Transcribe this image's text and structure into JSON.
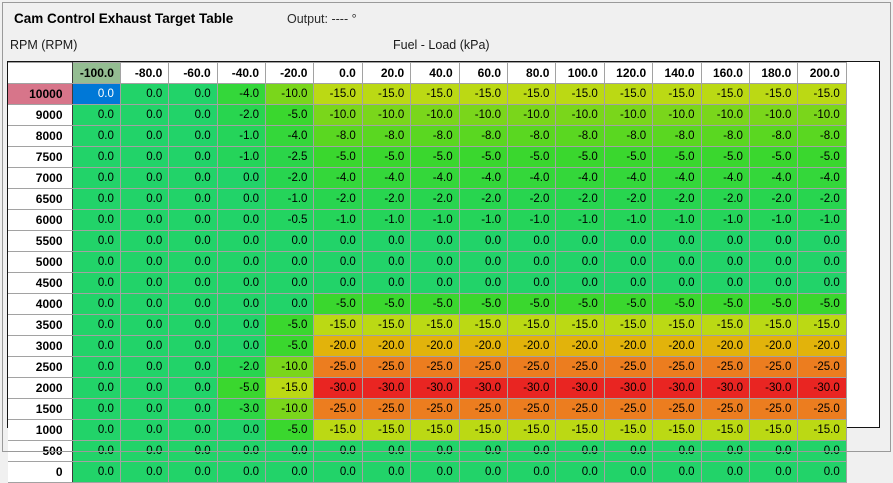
{
  "header": {
    "title": "Cam Control Exhaust Target Table",
    "output_label": "Output:",
    "output_value": "---- °"
  },
  "axes": {
    "y_label": "RPM (RPM)",
    "x_label": "Fuel - Load (kPa)"
  },
  "selection": {
    "row_index": 0,
    "col_index": 0,
    "cell_bg": "#0078d7",
    "cell_text": "#ffffff",
    "col_header_bg": "#94bd92",
    "row_header_bg": "#d7758a"
  },
  "table": {
    "col_headers": [
      "-100.0",
      "-80.0",
      "-60.0",
      "-40.0",
      "-20.0",
      "0.0",
      "20.0",
      "40.0",
      "60.0",
      "80.0",
      "100.0",
      "120.0",
      "140.0",
      "160.0",
      "180.0",
      "200.0"
    ],
    "row_headers": [
      "10000",
      "9000",
      "8000",
      "7500",
      "7000",
      "6500",
      "6000",
      "5500",
      "5000",
      "4500",
      "4000",
      "3500",
      "3000",
      "2500",
      "2000",
      "1500",
      "1000",
      "500",
      "0"
    ],
    "rows": [
      [
        "0.0",
        "0.0",
        "0.0",
        "-4.0",
        "-10.0",
        "-15.0",
        "-15.0",
        "-15.0",
        "-15.0",
        "-15.0",
        "-15.0",
        "-15.0",
        "-15.0",
        "-15.0",
        "-15.0",
        "-15.0"
      ],
      [
        "0.0",
        "0.0",
        "0.0",
        "-2.0",
        "-5.0",
        "-10.0",
        "-10.0",
        "-10.0",
        "-10.0",
        "-10.0",
        "-10.0",
        "-10.0",
        "-10.0",
        "-10.0",
        "-10.0",
        "-10.0"
      ],
      [
        "0.0",
        "0.0",
        "0.0",
        "-1.0",
        "-4.0",
        "-8.0",
        "-8.0",
        "-8.0",
        "-8.0",
        "-8.0",
        "-8.0",
        "-8.0",
        "-8.0",
        "-8.0",
        "-8.0",
        "-8.0"
      ],
      [
        "0.0",
        "0.0",
        "0.0",
        "-1.0",
        "-2.5",
        "-5.0",
        "-5.0",
        "-5.0",
        "-5.0",
        "-5.0",
        "-5.0",
        "-5.0",
        "-5.0",
        "-5.0",
        "-5.0",
        "-5.0"
      ],
      [
        "0.0",
        "0.0",
        "0.0",
        "0.0",
        "-2.0",
        "-4.0",
        "-4.0",
        "-4.0",
        "-4.0",
        "-4.0",
        "-4.0",
        "-4.0",
        "-4.0",
        "-4.0",
        "-4.0",
        "-4.0"
      ],
      [
        "0.0",
        "0.0",
        "0.0",
        "0.0",
        "-1.0",
        "-2.0",
        "-2.0",
        "-2.0",
        "-2.0",
        "-2.0",
        "-2.0",
        "-2.0",
        "-2.0",
        "-2.0",
        "-2.0",
        "-2.0"
      ],
      [
        "0.0",
        "0.0",
        "0.0",
        "0.0",
        "-0.5",
        "-1.0",
        "-1.0",
        "-1.0",
        "-1.0",
        "-1.0",
        "-1.0",
        "-1.0",
        "-1.0",
        "-1.0",
        "-1.0",
        "-1.0"
      ],
      [
        "0.0",
        "0.0",
        "0.0",
        "0.0",
        "0.0",
        "0.0",
        "0.0",
        "0.0",
        "0.0",
        "0.0",
        "0.0",
        "0.0",
        "0.0",
        "0.0",
        "0.0",
        "0.0"
      ],
      [
        "0.0",
        "0.0",
        "0.0",
        "0.0",
        "0.0",
        "0.0",
        "0.0",
        "0.0",
        "0.0",
        "0.0",
        "0.0",
        "0.0",
        "0.0",
        "0.0",
        "0.0",
        "0.0"
      ],
      [
        "0.0",
        "0.0",
        "0.0",
        "0.0",
        "0.0",
        "0.0",
        "0.0",
        "0.0",
        "0.0",
        "0.0",
        "0.0",
        "0.0",
        "0.0",
        "0.0",
        "0.0",
        "0.0"
      ],
      [
        "0.0",
        "0.0",
        "0.0",
        "0.0",
        "0.0",
        "-5.0",
        "-5.0",
        "-5.0",
        "-5.0",
        "-5.0",
        "-5.0",
        "-5.0",
        "-5.0",
        "-5.0",
        "-5.0",
        "-5.0"
      ],
      [
        "0.0",
        "0.0",
        "0.0",
        "0.0",
        "-5.0",
        "-15.0",
        "-15.0",
        "-15.0",
        "-15.0",
        "-15.0",
        "-15.0",
        "-15.0",
        "-15.0",
        "-15.0",
        "-15.0",
        "-15.0"
      ],
      [
        "0.0",
        "0.0",
        "0.0",
        "0.0",
        "-5.0",
        "-20.0",
        "-20.0",
        "-20.0",
        "-20.0",
        "-20.0",
        "-20.0",
        "-20.0",
        "-20.0",
        "-20.0",
        "-20.0",
        "-20.0"
      ],
      [
        "0.0",
        "0.0",
        "0.0",
        "-2.0",
        "-10.0",
        "-25.0",
        "-25.0",
        "-25.0",
        "-25.0",
        "-25.0",
        "-25.0",
        "-25.0",
        "-25.0",
        "-25.0",
        "-25.0",
        "-25.0"
      ],
      [
        "0.0",
        "0.0",
        "0.0",
        "-5.0",
        "-15.0",
        "-30.0",
        "-30.0",
        "-30.0",
        "-30.0",
        "-30.0",
        "-30.0",
        "-30.0",
        "-30.0",
        "-30.0",
        "-30.0",
        "-30.0"
      ],
      [
        "0.0",
        "0.0",
        "0.0",
        "-3.0",
        "-10.0",
        "-25.0",
        "-25.0",
        "-25.0",
        "-25.0",
        "-25.0",
        "-25.0",
        "-25.0",
        "-25.0",
        "-25.0",
        "-25.0",
        "-25.0"
      ],
      [
        "0.0",
        "0.0",
        "0.0",
        "0.0",
        "-5.0",
        "-15.0",
        "-15.0",
        "-15.0",
        "-15.0",
        "-15.0",
        "-15.0",
        "-15.0",
        "-15.0",
        "-15.0",
        "-15.0",
        "-15.0"
      ],
      [
        "0.0",
        "0.0",
        "0.0",
        "0.0",
        "0.0",
        "0.0",
        "0.0",
        "0.0",
        "0.0",
        "0.0",
        "0.0",
        "0.0",
        "0.0",
        "0.0",
        "0.0",
        "0.0"
      ],
      [
        "0.0",
        "0.0",
        "0.0",
        "0.0",
        "0.0",
        "0.0",
        "0.0",
        "0.0",
        "0.0",
        "0.0",
        "0.0",
        "0.0",
        "0.0",
        "0.0",
        "0.0",
        "0.0"
      ]
    ],
    "value_colors": {
      "0.0": "#22d369",
      "-0.5": "#23d461",
      "-1.0": "#25d45a",
      "-2.0": "#28d54f",
      "-2.5": "#2bd549",
      "-3.0": "#2ed643",
      "-4.0": "#34d73a",
      "-5.0": "#3ad72e",
      "-8.0": "#5ad721",
      "-10.0": "#7ad61b",
      "-15.0": "#bbd914",
      "-20.0": "#e2b30b",
      "-25.0": "#ec7d1f",
      "-30.0": "#e92522"
    }
  }
}
